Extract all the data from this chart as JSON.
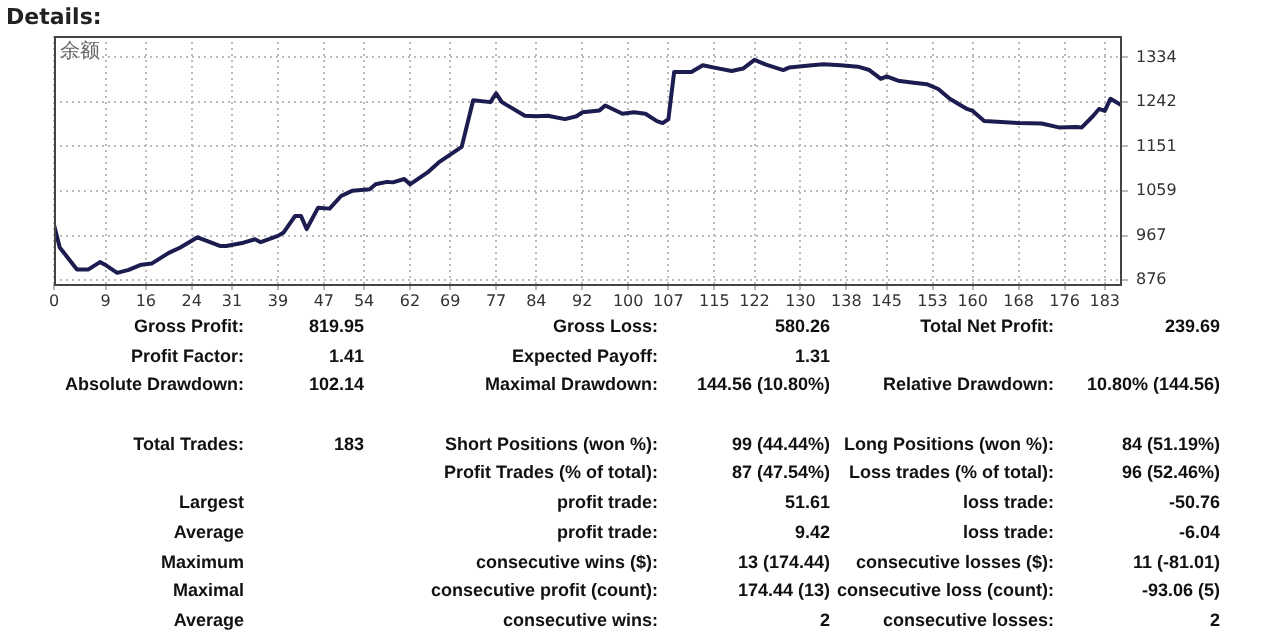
{
  "chart_data": {
    "type": "line",
    "title": "Details:",
    "x": [
      0,
      1,
      4,
      6,
      8,
      9,
      11,
      13,
      15,
      17,
      20,
      22,
      25,
      29,
      30,
      33,
      35,
      36,
      39,
      40,
      42,
      43,
      44,
      46,
      48,
      50,
      52,
      55,
      56,
      58,
      59,
      61,
      62,
      65,
      67,
      71,
      73,
      76,
      77,
      78,
      82,
      84,
      86,
      89,
      91,
      92,
      95,
      96,
      99,
      101,
      103,
      105,
      106,
      107,
      108,
      111,
      113,
      115,
      118,
      120,
      122,
      124,
      127,
      128,
      132,
      134,
      137,
      140,
      142,
      144,
      145,
      147,
      149,
      152,
      154,
      156,
      159,
      160,
      162,
      165,
      168,
      172,
      175,
      178,
      179,
      181,
      182,
      183,
      184,
      186
    ],
    "series": [
      {
        "name": "余额",
        "color": "#1c1c50",
        "values": [
          990,
          943,
          898,
          898,
          913,
          907,
          891,
          897,
          907,
          910,
          932,
          943,
          964,
          946,
          946,
          953,
          960,
          954,
          967,
          974,
          1008,
          1008,
          981,
          1025,
          1023,
          1049,
          1060,
          1063,
          1073,
          1078,
          1077,
          1084,
          1073,
          1097,
          1118,
          1150,
          1246,
          1242,
          1260,
          1242,
          1214,
          1213,
          1214,
          1207,
          1213,
          1221,
          1225,
          1235,
          1218,
          1221,
          1218,
          1203,
          1199,
          1207,
          1304,
          1304,
          1318,
          1313,
          1306,
          1311,
          1329,
          1319,
          1308,
          1313,
          1318,
          1320,
          1318,
          1315,
          1308,
          1290,
          1295,
          1286,
          1283,
          1279,
          1269,
          1249,
          1228,
          1224,
          1203,
          1201,
          1199,
          1198,
          1190,
          1191,
          1190,
          1214,
          1228,
          1224,
          1249,
          1235
        ]
      }
    ],
    "xlim": [
      0,
      186
    ],
    "xticks": [
      0,
      9,
      16,
      24,
      31,
      39,
      47,
      54,
      62,
      69,
      77,
      84,
      92,
      100,
      107,
      115,
      122,
      130,
      138,
      145,
      153,
      160,
      168,
      176,
      183
    ],
    "ylim": [
      868,
      1378
    ],
    "yticks": [
      876,
      967,
      1059,
      1151,
      1242,
      1334
    ],
    "grid": true,
    "marker": "none",
    "annotations": [
      "Gross Profit:",
      "819.95",
      "Gross Loss:",
      "580.26",
      "Total Net Profit:",
      "239.69",
      "Profit Factor:",
      "1.41",
      "Expected Payoff:",
      "1.31",
      "Absolute Drawdown:",
      "102.14",
      "Maximal Drawdown:",
      "144.56 (10.80%)",
      "Relative Drawdown:",
      "10.80% (144.56)",
      "Total Trades:",
      "183",
      "Short Positions (won %):",
      "99 (44.44%)",
      "Long Positions (won %):",
      "84 (51.19%)",
      "Profit Trades (% of total):",
      "87 (47.54%)",
      "Loss trades (% of total):",
      "96 (52.46%)",
      "Largest",
      "profit trade:",
      "51.61",
      "loss trade:",
      "-50.76",
      "Average",
      "profit trade:",
      "9.42",
      "loss trade:",
      "-6.04",
      "Maximum",
      "consecutive wins ($):",
      "13 (174.44)",
      "consecutive losses ($):",
      "11 (-81.01)",
      "Maximal",
      "consecutive profit (count):",
      "174.44 (13)",
      "consecutive loss (count):",
      "-93.06 (5)",
      "Average",
      "consecutive wins:",
      "2",
      "consecutive losses:",
      "2"
    ]
  }
}
